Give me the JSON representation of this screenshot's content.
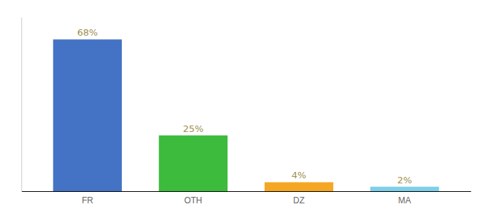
{
  "chart_data": {
    "type": "bar",
    "categories": [
      "FR",
      "OTH",
      "DZ",
      "MA"
    ],
    "values": [
      68,
      25,
      4,
      2
    ],
    "value_labels": [
      "68%",
      "25%",
      "4%",
      "2%"
    ],
    "colors": [
      "#4472c4",
      "#3dbb3d",
      "#f5a623",
      "#7ecfea"
    ],
    "ylim": [
      0,
      78
    ],
    "data_labels": true,
    "tick_labels": "x"
  }
}
